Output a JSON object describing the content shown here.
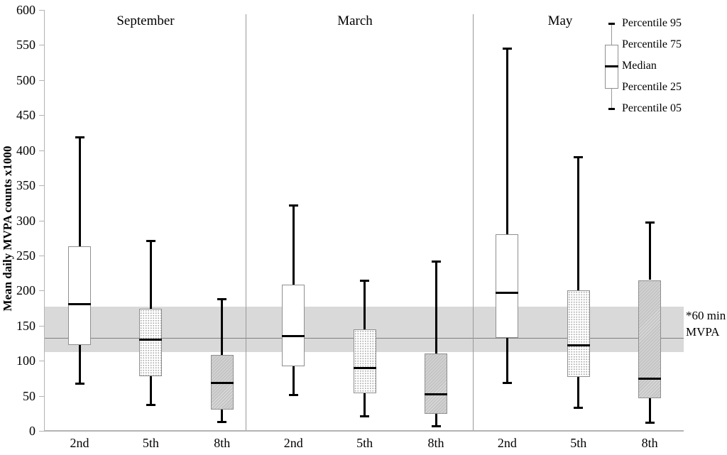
{
  "chart_data": {
    "type": "boxplot",
    "title": "",
    "xlabel": "",
    "ylabel": "Mean daily MVPA counts x1000",
    "ylim": [
      0,
      600
    ],
    "ytick_step": 50,
    "grid": false,
    "legend_position": "top-right",
    "legend": [
      {
        "label": "Percentile 95"
      },
      {
        "label": "Percentile 75"
      },
      {
        "label": "Median"
      },
      {
        "label": "Percentile 25"
      },
      {
        "label": "Percentile 05"
      }
    ],
    "panels": [
      {
        "month": "September",
        "groups": [
          {
            "grade": "2nd",
            "fill": "white",
            "p05": 67,
            "p25": 122,
            "median": 181,
            "p75": 263,
            "p95": 418
          },
          {
            "grade": "5th",
            "fill": "stipple",
            "p05": 37,
            "p25": 78,
            "median": 130,
            "p75": 174,
            "p95": 271
          },
          {
            "grade": "8th",
            "fill": "gray",
            "p05": 13,
            "p25": 30,
            "median": 68,
            "p75": 108,
            "p95": 188
          }
        ]
      },
      {
        "month": "March",
        "groups": [
          {
            "grade": "2nd",
            "fill": "white",
            "p05": 51,
            "p25": 92,
            "median": 135,
            "p75": 208,
            "p95": 321
          },
          {
            "grade": "5th",
            "fill": "stipple",
            "p05": 21,
            "p25": 54,
            "median": 90,
            "p75": 145,
            "p95": 214
          },
          {
            "grade": "8th",
            "fill": "gray",
            "p05": 7,
            "p25": 24,
            "median": 52,
            "p75": 110,
            "p95": 241
          }
        ]
      },
      {
        "month": "May",
        "groups": [
          {
            "grade": "2nd",
            "fill": "white",
            "p05": 68,
            "p25": 133,
            "median": 197,
            "p75": 280,
            "p95": 545
          },
          {
            "grade": "5th",
            "fill": "stipple",
            "p05": 33,
            "p25": 77,
            "median": 122,
            "p75": 200,
            "p95": 390
          },
          {
            "grade": "8th",
            "fill": "gray",
            "p05": 12,
            "p25": 47,
            "median": 74,
            "p75": 215,
            "p95": 297
          }
        ]
      }
    ],
    "reference_band": {
      "low": 112,
      "high": 177,
      "line_value": 132,
      "label_line1": "*60 min",
      "label_line2": "MVPA"
    }
  },
  "colors": {
    "band": "#d9d9d9",
    "reference_line": "#808080",
    "axis": "#b3b3b3",
    "separator": "#999999",
    "box_border": "#8f8f8f",
    "whisker": "#000000"
  }
}
